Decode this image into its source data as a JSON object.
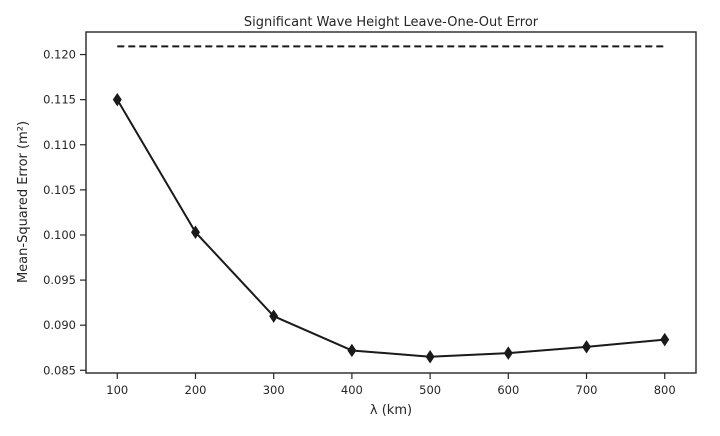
{
  "chart_data": {
    "type": "line",
    "title": "Significant Wave Height Leave-One-Out Error",
    "xlabel": "λ (km)",
    "ylabel": "Mean-Squared Error (m²)",
    "x": [
      100,
      200,
      300,
      400,
      500,
      600,
      700,
      800
    ],
    "xlim": [
      60,
      840
    ],
    "ylim": [
      0.0847,
      0.1225
    ],
    "xticks": [
      100,
      200,
      300,
      400,
      500,
      600,
      700,
      800
    ],
    "xtick_labels": [
      "100",
      "200",
      "300",
      "400",
      "500",
      "600",
      "700",
      "800"
    ],
    "yticks": [
      0.085,
      0.09,
      0.095,
      0.1,
      0.105,
      0.11,
      0.115,
      0.12
    ],
    "ytick_labels": [
      "0.085",
      "0.090",
      "0.095",
      "0.100",
      "0.105",
      "0.110",
      "0.115",
      "0.120"
    ],
    "series": [
      {
        "style": "solid",
        "marker": "diamond",
        "color": "#1a1a1a",
        "values": [
          0.115,
          0.1003,
          0.091,
          0.0872,
          0.0865,
          0.0869,
          0.0876,
          0.0884
        ]
      },
      {
        "style": "dashed",
        "marker": "none",
        "color": "#1a1a1a",
        "values": [
          0.1209,
          0.1209,
          0.1209,
          0.1209,
          0.1209,
          0.1209,
          0.1209,
          0.1209
        ]
      }
    ],
    "grid": false,
    "legend": "none"
  }
}
